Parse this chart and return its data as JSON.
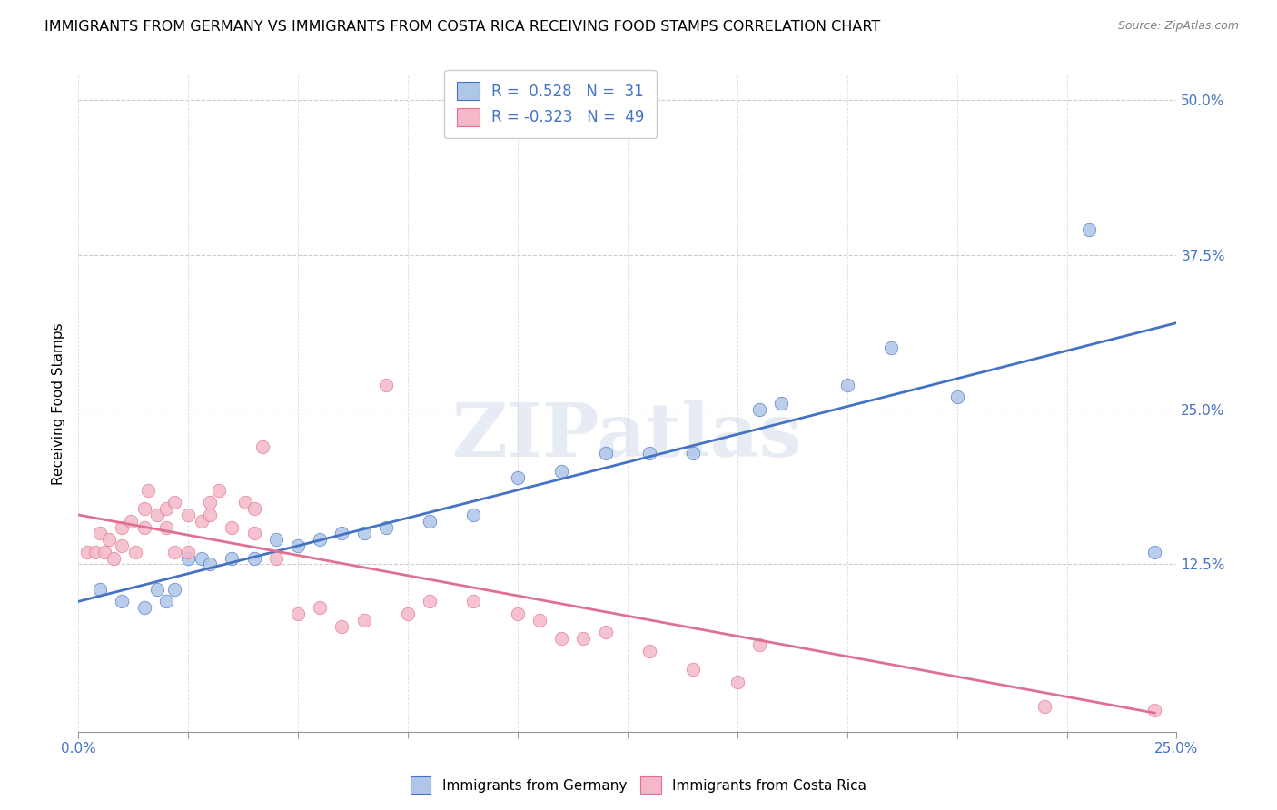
{
  "title": "IMMIGRANTS FROM GERMANY VS IMMIGRANTS FROM COSTA RICA RECEIVING FOOD STAMPS CORRELATION CHART",
  "source": "Source: ZipAtlas.com",
  "ylabel": "Receiving Food Stamps",
  "ylabel_right_ticks": [
    "50.0%",
    "37.5%",
    "25.0%",
    "12.5%"
  ],
  "xlim": [
    0.0,
    0.25
  ],
  "ylim": [
    -0.01,
    0.52
  ],
  "legend_germany": {
    "R": "0.528",
    "N": "31"
  },
  "legend_costarica": {
    "R": "-0.323",
    "N": "49"
  },
  "legend_label_germany": "Immigrants from Germany",
  "legend_label_costarica": "Immigrants from Costa Rica",
  "color_germany": "#aec6e8",
  "color_costarica": "#f4b8c8",
  "line_color_germany": "#4472c4",
  "line_color_costarica": "#e07090",
  "watermark": "ZIPatlas",
  "germany_x": [
    0.005,
    0.01,
    0.015,
    0.018,
    0.02,
    0.022,
    0.025,
    0.028,
    0.03,
    0.035,
    0.04,
    0.045,
    0.05,
    0.055,
    0.06,
    0.065,
    0.07,
    0.08,
    0.09,
    0.1,
    0.11,
    0.12,
    0.13,
    0.14,
    0.155,
    0.16,
    0.175,
    0.185,
    0.2,
    0.23,
    0.245
  ],
  "germany_y": [
    0.105,
    0.095,
    0.09,
    0.105,
    0.095,
    0.105,
    0.13,
    0.13,
    0.125,
    0.13,
    0.13,
    0.145,
    0.14,
    0.145,
    0.15,
    0.15,
    0.155,
    0.16,
    0.165,
    0.195,
    0.2,
    0.215,
    0.215,
    0.215,
    0.25,
    0.255,
    0.27,
    0.3,
    0.26,
    0.395,
    0.135
  ],
  "costarica_x": [
    0.002,
    0.004,
    0.005,
    0.006,
    0.007,
    0.008,
    0.01,
    0.01,
    0.012,
    0.013,
    0.015,
    0.015,
    0.016,
    0.018,
    0.02,
    0.02,
    0.022,
    0.022,
    0.025,
    0.025,
    0.028,
    0.03,
    0.03,
    0.032,
    0.035,
    0.038,
    0.04,
    0.04,
    0.042,
    0.045,
    0.05,
    0.055,
    0.06,
    0.065,
    0.07,
    0.075,
    0.08,
    0.09,
    0.1,
    0.105,
    0.11,
    0.115,
    0.12,
    0.13,
    0.14,
    0.15,
    0.155,
    0.22,
    0.245
  ],
  "costarica_y": [
    0.135,
    0.135,
    0.15,
    0.135,
    0.145,
    0.13,
    0.155,
    0.14,
    0.16,
    0.135,
    0.17,
    0.155,
    0.185,
    0.165,
    0.17,
    0.155,
    0.175,
    0.135,
    0.165,
    0.135,
    0.16,
    0.165,
    0.175,
    0.185,
    0.155,
    0.175,
    0.17,
    0.15,
    0.22,
    0.13,
    0.085,
    0.09,
    0.075,
    0.08,
    0.27,
    0.085,
    0.095,
    0.095,
    0.085,
    0.08,
    0.065,
    0.065,
    0.07,
    0.055,
    0.04,
    0.03,
    0.06,
    0.01,
    0.007
  ],
  "germany_line_x": [
    0.0,
    0.25
  ],
  "germany_line_y": [
    0.095,
    0.32
  ],
  "costarica_line_x": [
    0.0,
    0.245
  ],
  "costarica_line_y": [
    0.165,
    0.005
  ]
}
